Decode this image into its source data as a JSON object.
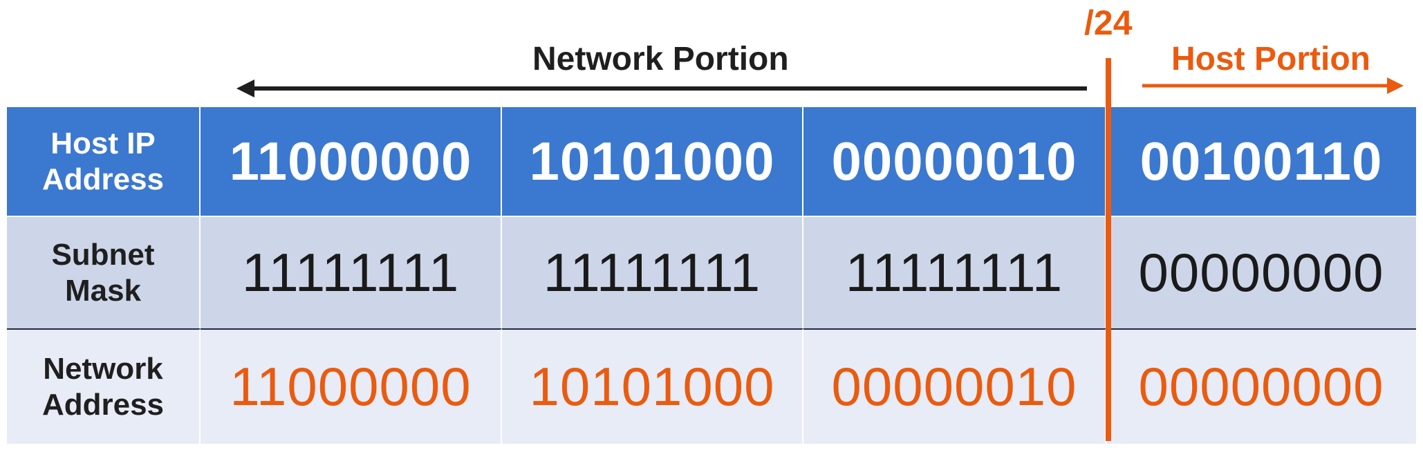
{
  "labels": {
    "network_portion": "Network Portion",
    "host_portion": "Host Portion",
    "prefix": "/24"
  },
  "rows": [
    {
      "header_line1": "Host IP",
      "header_line2": "Address",
      "octets": [
        "11000000",
        "10101000",
        "00000010",
        "00100110"
      ]
    },
    {
      "header_line1": "Subnet",
      "header_line2": "Mask",
      "octets": [
        "11111111",
        "11111111",
        "11111111",
        "00000000"
      ]
    },
    {
      "header_line1": "Network",
      "header_line2": "Address",
      "octets": [
        "11000000",
        "10101000",
        "00000010",
        "00000000"
      ]
    }
  ],
  "colors": {
    "header_row_bg": "#3b78d0",
    "mask_row_bg": "#cdd6e9",
    "network_row_bg": "#e8ecf6",
    "accent_orange": "#ea5b0f",
    "dark_text": "#1f1f1f"
  }
}
